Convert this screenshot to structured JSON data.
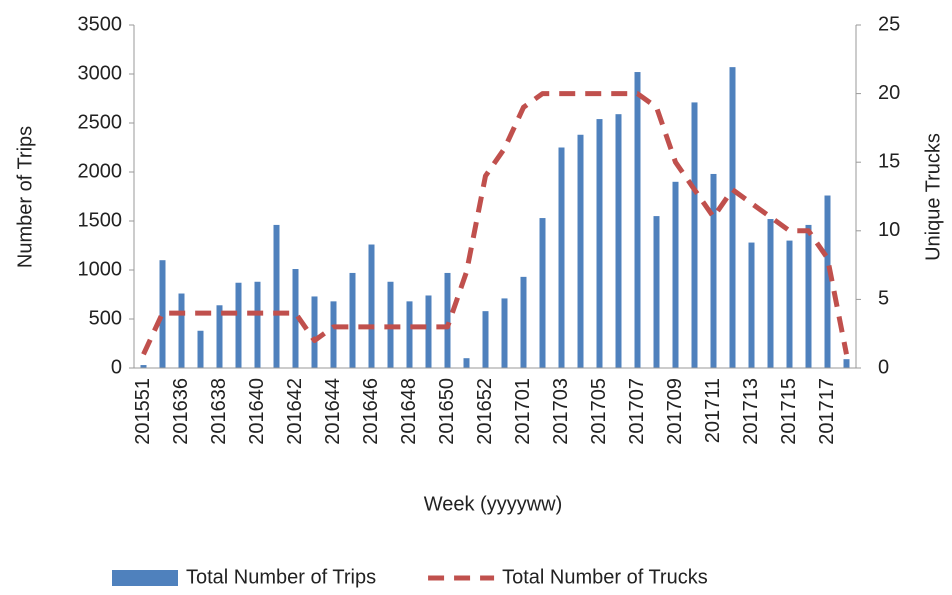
{
  "chart_data": {
    "type": "bar-line",
    "xlabel": "Week (yyyyww)",
    "ylabel": "Number of Trips",
    "y2label": "Unique Trucks",
    "categories": [
      "201551",
      null,
      "201636",
      null,
      "201638",
      null,
      "201640",
      null,
      "201642",
      null,
      "201644",
      null,
      "201646",
      null,
      "201648",
      null,
      "201650",
      null,
      "201652",
      null,
      "201701",
      null,
      "201703",
      null,
      "201705",
      null,
      "201707",
      null,
      "201709",
      null,
      "201711",
      null,
      "201713",
      null,
      "201715",
      null,
      "201717",
      null
    ],
    "series": [
      {
        "name": "Total Number of Trips",
        "type": "bar",
        "color": "#4f81bd",
        "values": [
          30,
          1100,
          760,
          380,
          640,
          870,
          880,
          1460,
          1010,
          730,
          680,
          970,
          1260,
          880,
          680,
          740,
          970,
          100,
          580,
          710,
          930,
          1530,
          2250,
          2380,
          2540,
          2590,
          3020,
          1550,
          1900,
          2710,
          1980,
          3070,
          1280,
          1520,
          1300,
          1460,
          1760,
          90
        ]
      },
      {
        "name": "Total Number of Trucks",
        "type": "line",
        "axis": "y2",
        "color": "#c0504d",
        "dashed": true,
        "values": [
          1,
          4,
          4,
          4,
          4,
          4,
          4,
          4,
          4,
          2,
          3,
          3,
          3,
          3,
          3,
          3,
          3,
          7,
          14,
          16,
          19,
          20,
          20,
          20,
          20,
          20,
          20,
          19,
          15,
          13,
          11,
          13,
          12,
          11,
          10,
          10,
          8,
          1
        ]
      }
    ],
    "ylim": [
      0,
      3500
    ],
    "yticks": [
      0,
      500,
      1000,
      1500,
      2000,
      2500,
      3000,
      3500
    ],
    "y2lim": [
      0,
      25
    ],
    "y2ticks": [
      0,
      5,
      10,
      15,
      20,
      25
    ],
    "legend": "bottom"
  }
}
